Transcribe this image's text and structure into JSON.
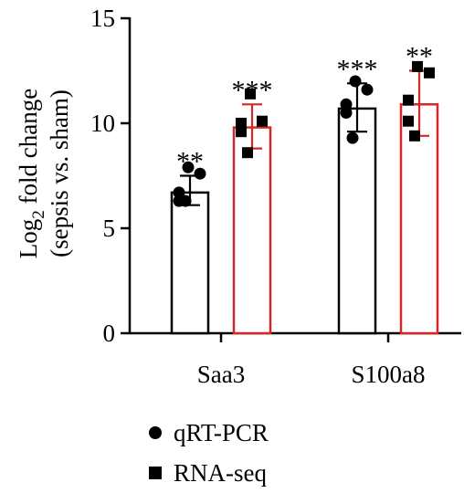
{
  "chart_data": {
    "type": "bar",
    "categories": [
      "Saa3",
      "S100a8"
    ],
    "ylabel_line1": "Log",
    "ylabel_sub": "2",
    "ylabel_line1_rest": " fold change",
    "ylabel_line2": "(sepsis vs. sham)",
    "ylim": [
      0,
      15
    ],
    "yticks": [
      0,
      5,
      10,
      15
    ],
    "series": [
      {
        "name": "qRT-PCR",
        "marker": "circle",
        "color": "#000000",
        "values": [
          6.7,
          10.7
        ],
        "error": [
          [
            6.1,
            7.5
          ],
          [
            9.6,
            11.9
          ]
        ],
        "points": [
          [
            7.9,
            7.6,
            6.7,
            6.3,
            6.3
          ],
          [
            12.0,
            11.6,
            10.9,
            10.5,
            9.3
          ]
        ],
        "significance": [
          "**",
          "***"
        ]
      },
      {
        "name": "RNA-seq",
        "marker": "square",
        "color": "#d62728",
        "values": [
          9.8,
          10.9
        ],
        "error": [
          [
            8.8,
            10.9
          ],
          [
            9.4,
            12.5
          ]
        ],
        "points": [
          [
            11.4,
            10.1,
            10.0,
            9.6,
            8.6
          ],
          [
            12.7,
            12.4,
            11.1,
            10.1,
            9.4
          ]
        ],
        "significance": [
          "***",
          "**"
        ]
      }
    ],
    "legend": {
      "placement": "bottom-left"
    }
  }
}
